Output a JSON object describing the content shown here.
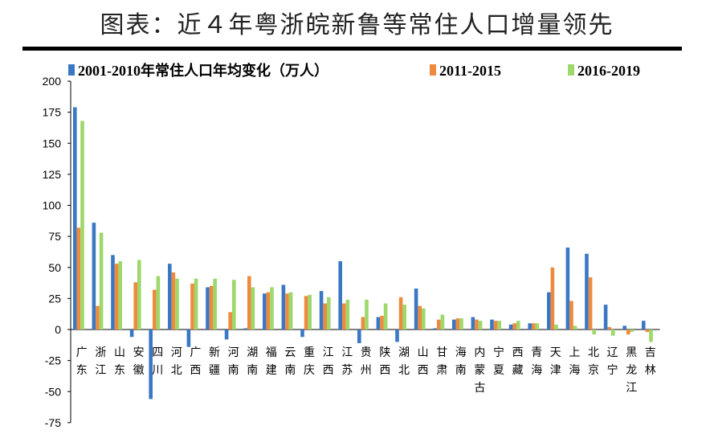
{
  "title": "图表：近４年粤浙皖新鲁等常住人口增量领先",
  "colors": {
    "series_1": "#3a78c4",
    "series_2": "#ee8a3e",
    "series_3": "#9fd86a",
    "axis": "#000000",
    "title_rule": "#000000"
  },
  "chart_data": {
    "type": "bar",
    "title": "图表：近４年粤浙皖新鲁等常住人口增量领先",
    "xlabel": "",
    "ylabel": "",
    "ylim": [
      -75,
      200
    ],
    "yticks": [
      200,
      175,
      150,
      125,
      100,
      75,
      50,
      25,
      0,
      -25,
      -50,
      -75
    ],
    "grid": false,
    "legend_position": "top",
    "categories": [
      "广东",
      "浙江",
      "山东",
      "安徽",
      "四川",
      "河北",
      "广西",
      "新疆",
      "河南",
      "湖南",
      "福建",
      "云南",
      "重庆",
      "江西",
      "江苏",
      "贵州",
      "陕西",
      "湖北",
      "山西",
      "甘肃",
      "海南",
      "内蒙古",
      "宁夏",
      "西藏",
      "青海",
      "天津",
      "上海",
      "北京",
      "辽宁",
      "黑龙江",
      "吉林"
    ],
    "series": [
      {
        "name": "2001-2010年常住人口年均变化（万人）",
        "values": [
          179,
          86,
          60,
          -6,
          -56,
          53,
          -14,
          34,
          -8,
          1,
          29,
          36,
          -6,
          31,
          55,
          -11,
          10,
          -10,
          33,
          1,
          8,
          10,
          8,
          4,
          5,
          30,
          66,
          61,
          20,
          3,
          7
        ]
      },
      {
        "name": "2011-2015",
        "values": [
          82,
          19,
          53,
          38,
          32,
          46,
          37,
          35,
          14,
          43,
          30,
          29,
          27,
          21,
          21,
          10,
          11,
          26,
          19,
          8,
          9,
          8,
          7,
          5,
          5,
          50,
          23,
          42,
          2,
          -4,
          -2
        ]
      },
      {
        "name": "2016-2019",
        "values": [
          168,
          78,
          55,
          56,
          43,
          41,
          41,
          41,
          40,
          34,
          34,
          30,
          28,
          26,
          24,
          24,
          21,
          20,
          17,
          12,
          9,
          7,
          7,
          7,
          5,
          4,
          3,
          -4,
          -5,
          -2,
          -10
        ]
      }
    ]
  }
}
